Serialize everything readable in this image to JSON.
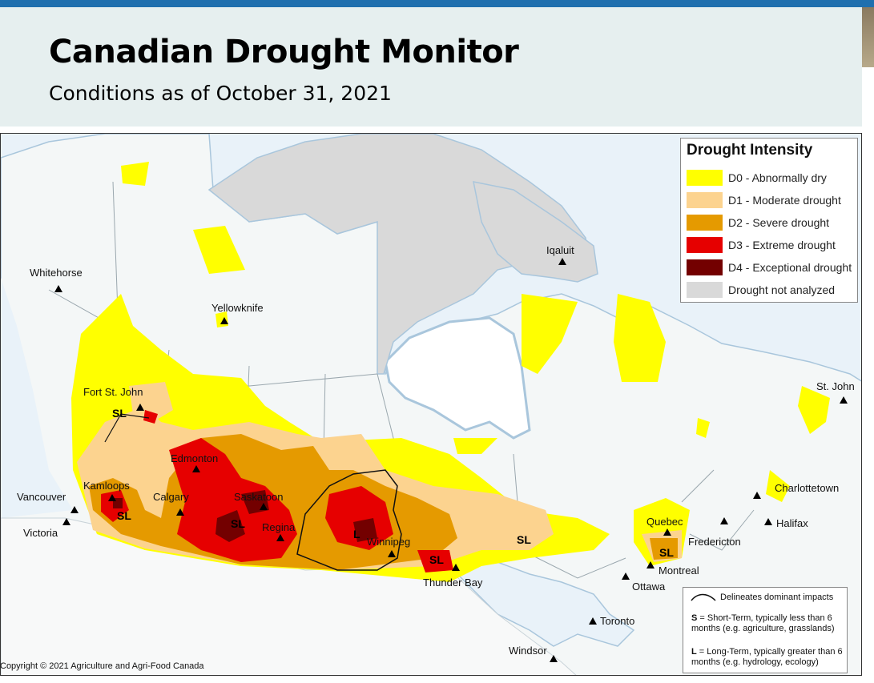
{
  "header": {
    "title": "Canadian Drought Monitor",
    "subtitle": "Conditions as of October 31, 2021"
  },
  "colors": {
    "d0": "#ffff00",
    "d1": "#fcd38f",
    "d2": "#e59a00",
    "d3": "#e60000",
    "d4": "#730000",
    "not_analyzed": "#d9d9d9",
    "land": "#f4f7f7",
    "water": "#e9f2f9"
  },
  "legend": {
    "title": "Drought Intensity",
    "items": [
      {
        "label": "D0 - Abnormally dry",
        "color": "#ffff00"
      },
      {
        "label": "D1 - Moderate drought",
        "color": "#fcd38f"
      },
      {
        "label": "D2 - Severe drought",
        "color": "#e59a00"
      },
      {
        "label": "D3 - Extreme drought",
        "color": "#e60000"
      },
      {
        "label": "D4 - Exceptional drought",
        "color": "#730000"
      },
      {
        "label": "Drought not analyzed",
        "color": "#d9d9d9"
      }
    ]
  },
  "cities": [
    {
      "name": "Whitehorse"
    },
    {
      "name": "Yellowknife"
    },
    {
      "name": "Iqaluit"
    },
    {
      "name": "Fort St. John"
    },
    {
      "name": "Edmonton"
    },
    {
      "name": "Kamloops"
    },
    {
      "name": "Calgary"
    },
    {
      "name": "Saskatoon"
    },
    {
      "name": "Vancouver"
    },
    {
      "name": "Victoria"
    },
    {
      "name": "Regina"
    },
    {
      "name": "Winnipeg"
    },
    {
      "name": "Thunder Bay"
    },
    {
      "name": "St. John"
    },
    {
      "name": "Charlottetown"
    },
    {
      "name": "Halifax"
    },
    {
      "name": "Quebec"
    },
    {
      "name": "Fredericton"
    },
    {
      "name": "Montreal"
    },
    {
      "name": "Ottawa"
    },
    {
      "name": "Toronto"
    },
    {
      "name": "Windsor"
    }
  ],
  "impact_labels": [
    "SL",
    "SL",
    "SL",
    "L",
    "SL",
    "SL",
    "SL"
  ],
  "notes": {
    "line_desc": "Delineates dominant impacts",
    "short_key": "S",
    "short_text": " = Short-Term, typically less than 6 months (e.g. agriculture, grasslands)",
    "long_key": "L",
    "long_text": " = Long-Term, typically greater  than 6 months (e.g. hydrology, ecology)"
  },
  "copyright": "Copyright © 2021 Agriculture and Agri-Food Canada"
}
